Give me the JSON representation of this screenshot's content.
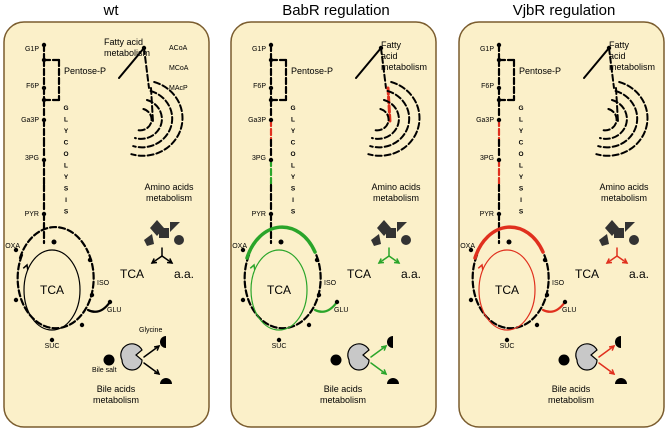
{
  "titles": [
    "wt",
    "BabR regulation",
    "VjbR regulation"
  ],
  "labels": {
    "g1p": "G1P",
    "f6p": "F6P",
    "pentose": "Pentose-P",
    "ga3p": "Ga3P",
    "pg3": "3PG",
    "pyr": "PYR",
    "oxa": "OXA",
    "iso": "ISO",
    "glu": "GLU",
    "suc": "SUC",
    "tca": "TCA",
    "aa": "a.a.",
    "glycolysis": [
      "G",
      "L",
      "Y",
      "C",
      "O",
      "L",
      "Y",
      "S",
      "I",
      "S"
    ],
    "fatty_acid_wt": [
      "Fatty acid",
      "metabolism"
    ],
    "fatty_acid_reg": [
      "Fatty",
      "acid",
      "metabolism"
    ],
    "acoa": "ACoA",
    "mcoa": "MCoA",
    "macp": "MAcP",
    "amino": [
      "Amino acids",
      "metabolism"
    ],
    "glycine": "Glycine",
    "bile_salt": "Bile salt",
    "bile": [
      "Bile acids",
      "metabolism"
    ]
  },
  "colors": {
    "panel_fill": "#fbf0c9",
    "panel_border": "#7a5c2e",
    "wt": "#000000",
    "babr": "#2aa52a",
    "vjbr": "#e0301e",
    "shape_gray": "#333333",
    "enzyme_gray": "#c8c8c8"
  }
}
